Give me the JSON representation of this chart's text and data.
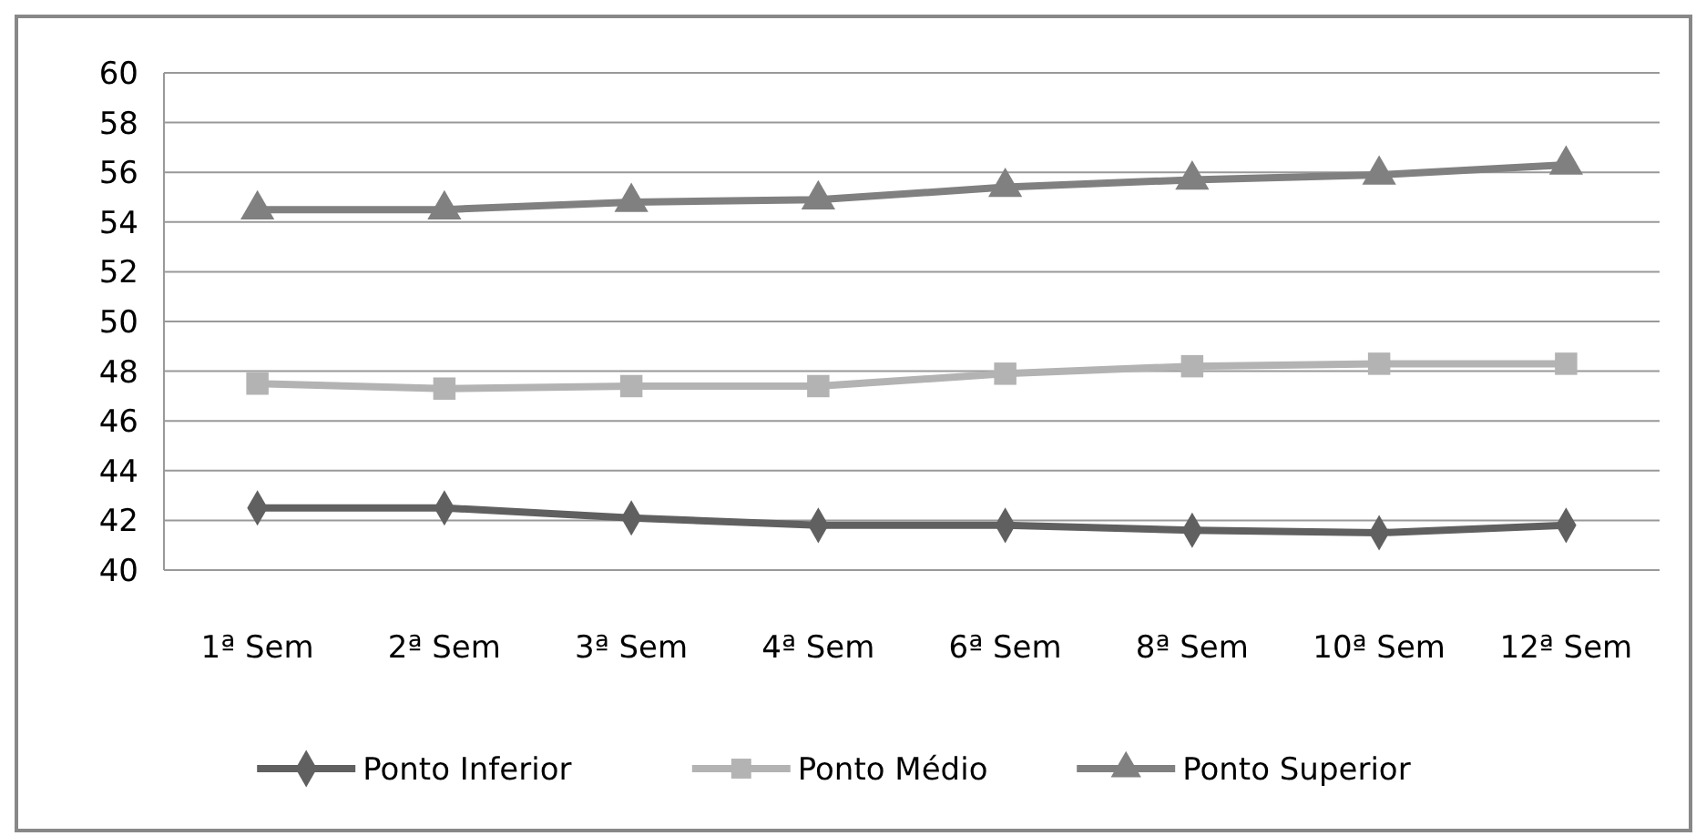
{
  "chart_data": {
    "type": "line",
    "categories": [
      "1ª Sem",
      "2ª Sem",
      "3ª Sem",
      "4ª Sem",
      "6ª Sem",
      "8ª Sem",
      "10ª Sem",
      "12ª Sem"
    ],
    "series": [
      {
        "name": "Ponto Inferior",
        "color": "#606060",
        "marker": "diamond",
        "values": [
          42.5,
          42.5,
          42.1,
          41.8,
          41.8,
          41.6,
          41.5,
          41.8
        ]
      },
      {
        "name": "Ponto Médio",
        "color": "#b3b3b3",
        "marker": "square",
        "values": [
          47.5,
          47.3,
          47.4,
          47.4,
          47.9,
          48.2,
          48.3,
          48.3
        ]
      },
      {
        "name": "Ponto Superior",
        "color": "#808080",
        "marker": "triangle",
        "values": [
          54.5,
          54.5,
          54.8,
          54.9,
          55.4,
          55.7,
          55.9,
          56.3
        ]
      }
    ],
    "ylim": [
      40,
      60
    ],
    "yticks": [
      40,
      42,
      44,
      46,
      48,
      50,
      52,
      54,
      56,
      58,
      60
    ],
    "grid": "y",
    "legend": "bottom",
    "line_style": "solid"
  }
}
